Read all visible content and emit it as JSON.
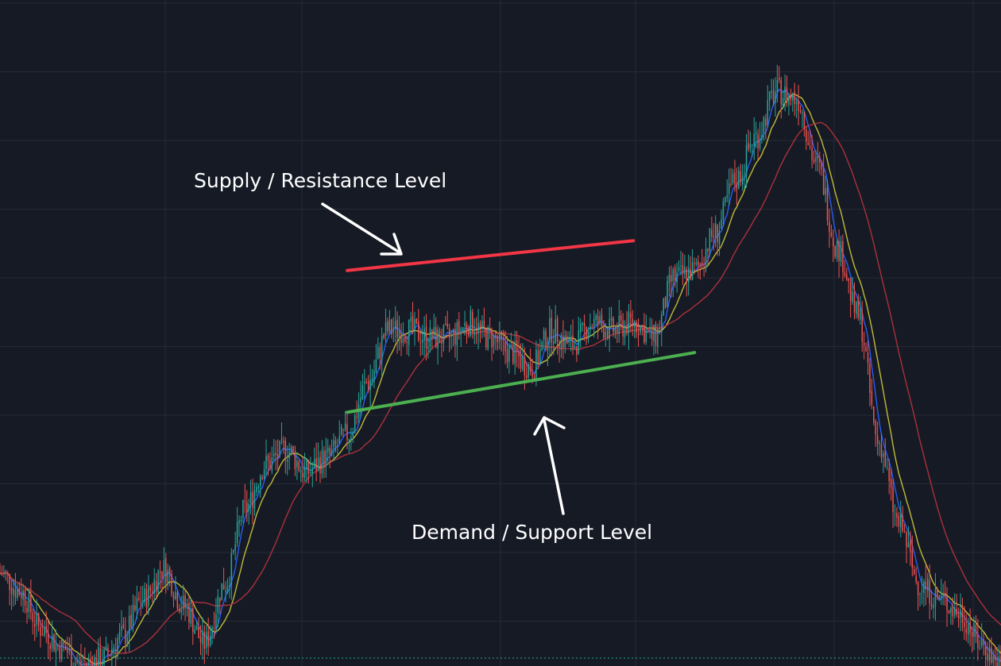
{
  "chart_data": {
    "type": "candlestick",
    "title": "",
    "xlabel": "",
    "ylabel": "",
    "grid": true,
    "colors": {
      "background": "#161a25",
      "grid": "#262a36",
      "up_candle": "#26a69a",
      "down_candle": "#ef5350",
      "resistance_line": "#f23645",
      "support_line": "#4caf50",
      "ma_fast": "#2962ff",
      "ma_mid": "#c9c33a",
      "ma_slow": "#b2333c",
      "current_price_line": "#26a69a",
      "annotation_text": "#ffffff"
    },
    "series": [
      {
        "name": "",
        "kind": "price",
        "points": [
          [
            0,
            25
          ],
          [
            1,
            20
          ],
          [
            2,
            10
          ],
          [
            3,
            5
          ],
          [
            4,
            0
          ],
          [
            5,
            2
          ],
          [
            6,
            8
          ],
          [
            7,
            18
          ],
          [
            8,
            26
          ],
          [
            9,
            16
          ],
          [
            10,
            6
          ],
          [
            11,
            22
          ],
          [
            12,
            42
          ],
          [
            13,
            54
          ],
          [
            14,
            58
          ],
          [
            15,
            52
          ],
          [
            16,
            56
          ],
          [
            17,
            62
          ],
          [
            18,
            76
          ],
          [
            19,
            90
          ],
          [
            20,
            90
          ],
          [
            21,
            88
          ],
          [
            22,
            88
          ],
          [
            23,
            92
          ],
          [
            24,
            88
          ],
          [
            25,
            84
          ],
          [
            26,
            80
          ],
          [
            27,
            90
          ],
          [
            28,
            86
          ],
          [
            29,
            92
          ],
          [
            30,
            90
          ],
          [
            31,
            92
          ],
          [
            32,
            88
          ],
          [
            33,
            104
          ],
          [
            34,
            106
          ],
          [
            35,
            116
          ],
          [
            36,
            130
          ],
          [
            37,
            142
          ],
          [
            38,
            154
          ],
          [
            39,
            152
          ],
          [
            40,
            134
          ],
          [
            41,
            112
          ],
          [
            42,
            94
          ],
          [
            43,
            60
          ],
          [
            44,
            38
          ],
          [
            45,
            22
          ],
          [
            46,
            18
          ],
          [
            47,
            14
          ],
          [
            48,
            6
          ],
          [
            49,
            0
          ]
        ]
      },
      {
        "name": "",
        "kind": "moving-average-fast"
      },
      {
        "name": "",
        "kind": "moving-average-mid"
      },
      {
        "name": "",
        "kind": "moving-average-slow"
      }
    ],
    "xlim": [
      0,
      49
    ],
    "ylim": [
      0,
      170
    ],
    "annotations": [
      {
        "text": "Supply / Resistance Level",
        "kind": "resistance-line",
        "from": [
          17,
          106
        ],
        "to": [
          31,
          114
        ]
      },
      {
        "text": "Demand / Support Level",
        "kind": "support-line",
        "from": [
          17,
          68
        ],
        "to": [
          34,
          84
        ]
      }
    ]
  }
}
